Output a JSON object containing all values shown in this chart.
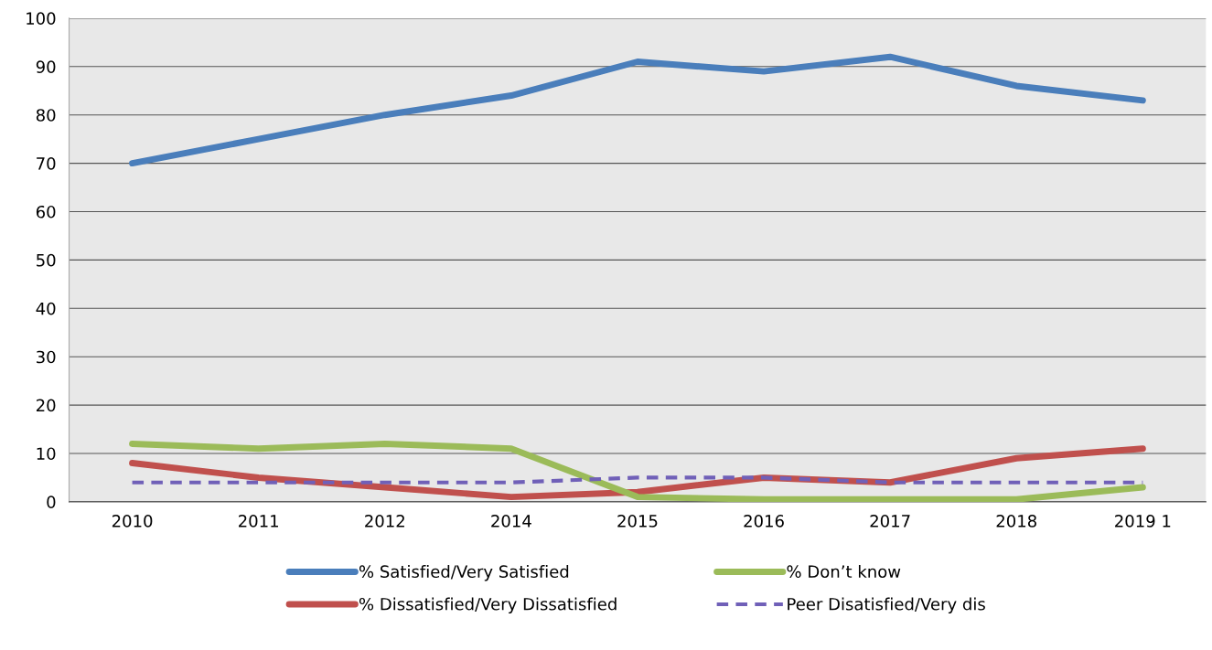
{
  "chart_data": {
    "type": "line",
    "categories": [
      "2010",
      "2011",
      "2012",
      "2014",
      "2015",
      "2016",
      "2017",
      "2018",
      "2019 1"
    ],
    "series": [
      {
        "name": "% Satisfied/Very Satisfied",
        "color": "#4a7ebb",
        "values": [
          70,
          75,
          80,
          84,
          91,
          89,
          92,
          86,
          83
        ]
      },
      {
        "name": "% Dissatisfied/Very Dissatisfied",
        "color": "#c0504d",
        "values": [
          8,
          5,
          3,
          1,
          2,
          5,
          4,
          9,
          11
        ]
      },
      {
        "name": "% Don’t know",
        "color": "#9bbb59",
        "values": [
          12,
          11,
          12,
          11,
          1,
          0.5,
          0.5,
          0.5,
          3
        ]
      },
      {
        "name": "Peer Disatisfied/Very dis",
        "color": "#7060b8",
        "line_style": "dashed",
        "values": [
          4,
          4,
          4,
          4,
          5,
          5,
          4,
          4,
          4
        ]
      }
    ],
    "ylim": [
      0,
      100
    ],
    "yticks": [
      0,
      10,
      20,
      30,
      40,
      50,
      60,
      70,
      80,
      90,
      100
    ],
    "grid": "y",
    "legend": "bottom",
    "marker": "none",
    "line_style": "solid"
  }
}
